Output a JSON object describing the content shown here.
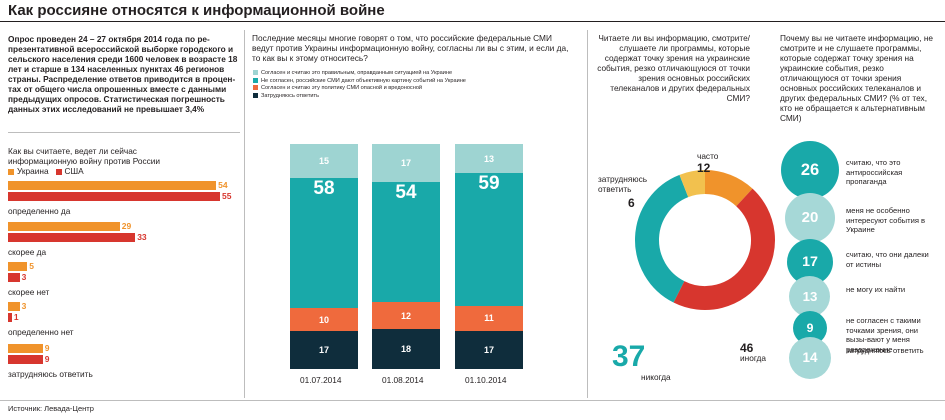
{
  "title": "Как россияне относятся к информационной войне",
  "intro": "Опрос проведен 24 – 27  октября 2014 года  по ре-презентативной всероссийской выборке городского и сельского населения среди 1600 человек в возрасте 18 лет и старше в 134 населенных пунктах 46 регионов страны. Распределение ответов приводится в процен-тах от общего числа опрошенных вместе с данными предыдущих опросов. Статистическая погрешность данных этих исследований не превышает 3,4%",
  "colors": {
    "orange": "#f0932b",
    "red": "#d7362e",
    "light": "#9ed4d2",
    "teal": "#19a9a9",
    "salmon": "#ef6a3d",
    "navy": "#0f2d3c",
    "yellow": "#f2c14e",
    "circle_light": "#a6d8d7"
  },
  "chart_data": [
    {
      "type": "bar",
      "title": "Как вы считаете, ведет ли сейчас информационную войну против России",
      "categories": [
        "определенно да",
        "скорее да",
        "скорее нет",
        "определенно нет",
        "затрудняюсь ответить"
      ],
      "series": [
        {
          "name": "Украина",
          "values": [
            54,
            29,
            5,
            3,
            9
          ]
        },
        {
          "name": "США",
          "values": [
            55,
            33,
            3,
            1,
            9
          ]
        }
      ],
      "xlim": [
        0,
        55
      ]
    },
    {
      "type": "bar",
      "title": "Последние месяцы многие говорят о том, что российские федеральные СМИ ведут против Украины информационную войну, согласны ли вы с этим, и если да, то как вы к этому относитесь?",
      "categories": [
        "01.07.2014",
        "01.08.2014",
        "01.10.2014"
      ],
      "series": [
        {
          "name": "Согласен и считаю это правильным, оправданным ситуацией на Украине",
          "values": [
            15,
            17,
            13
          ]
        },
        {
          "name": "Не согласен, российские СМИ дают объективную картину событий на Украине",
          "values": [
            58,
            54,
            59
          ]
        },
        {
          "name": "Согласен и считаю эту политику СМИ опасной и вредоносной",
          "values": [
            10,
            12,
            11
          ]
        },
        {
          "name": "Затрудняюсь ответить",
          "values": [
            17,
            18,
            17
          ]
        }
      ],
      "stacked": true
    },
    {
      "type": "pie",
      "title": "Читаете ли вы информацию, смотрите/слушаете ли программы, которые содержат точку зрения на украинские события, резко отличающуюся от точки зрения основных российских телеканалов и других федеральных СМИ?",
      "slices": [
        {
          "label": "часто",
          "value": 12
        },
        {
          "label": "иногда",
          "value": 46
        },
        {
          "label": "никогда",
          "value": 37
        },
        {
          "label": "затрудняюсь ответить",
          "value": 6
        }
      ]
    },
    {
      "type": "bar",
      "title": "Почему вы не читаете информацию, не смотрите и не слушаете программы, которые содержат точку зрения на украинские события, резко отличающуюся от точки зрения основных российских телеканалов и других федеральных СМИ? (% от тех, кто не обращается к альтернативным СМИ)",
      "categories": [
        "считаю, что это антироссийская пропаганда",
        "меня не особенно интересуют события в Украине",
        "считаю, что они далеки от истины",
        "не могу их найти",
        "не согласен с такими точками зрения, они вызы-вают  у меня раздражение",
        "затрудняюсь ответить"
      ],
      "values": [
        26,
        20,
        17,
        13,
        9,
        14
      ]
    }
  ],
  "source": "Источник:  Левада-Центр"
}
